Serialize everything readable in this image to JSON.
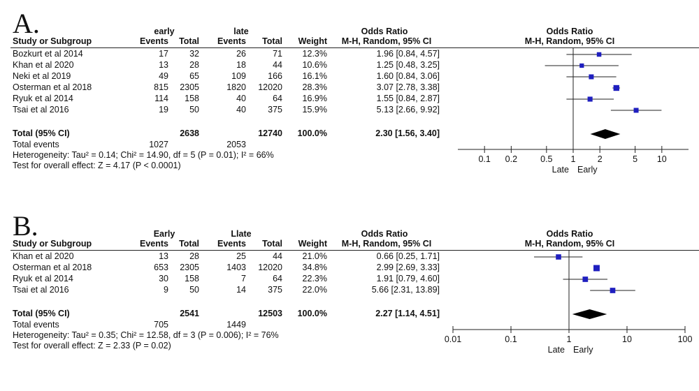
{
  "columns": {
    "study": "Study or Subgroup",
    "events": "Events",
    "total": "Total",
    "weight": "Weight",
    "or_title": "Odds Ratio",
    "or_method": "M-H, Random, 95% CI"
  },
  "colors": {
    "marker": "#1f1fbf",
    "diamond": "#000000",
    "line": "#222222"
  },
  "panels": [
    {
      "letter": "A.",
      "group1": "early",
      "group2": "late",
      "studies": [
        {
          "name": "Bozkurt et al 2014",
          "e1": "17",
          "t1": "32",
          "e2": "26",
          "t2": "71",
          "weight": "12.3%",
          "ci": "1.96 [0.84, 4.57]"
        },
        {
          "name": "Khan et al 2020",
          "e1": "13",
          "t1": "28",
          "e2": "18",
          "t2": "44",
          "weight": "10.6%",
          "ci": "1.25 [0.48, 3.25]"
        },
        {
          "name": "Neki et al 2019",
          "e1": "49",
          "t1": "65",
          "e2": "109",
          "t2": "166",
          "weight": "16.1%",
          "ci": "1.60 [0.84, 3.06]"
        },
        {
          "name": "Osterman et al 2018",
          "e1": "815",
          "t1": "2305",
          "e2": "1820",
          "t2": "12020",
          "weight": "28.3%",
          "ci": "3.07 [2.78, 3.38]"
        },
        {
          "name": "Ryuk et al 2014",
          "e1": "114",
          "t1": "158",
          "e2": "40",
          "t2": "64",
          "weight": "16.9%",
          "ci": "1.55 [0.84, 2.87]"
        },
        {
          "name": "Tsai et al 2016",
          "e1": "19",
          "t1": "50",
          "e2": "40",
          "t2": "375",
          "weight": "15.9%",
          "ci": "5.13 [2.66, 9.92]"
        }
      ],
      "total": {
        "label": "Total (95% CI)",
        "t1": "2638",
        "t2": "12740",
        "weight": "100.0%",
        "ci": "2.30 [1.56, 3.40]"
      },
      "events": {
        "label": "Total events",
        "e1": "1027",
        "e2": "2053"
      },
      "heterogeneity": "Heterogeneity: Tau² = 0.14; Chi² = 14.90, df = 5 (P = 0.01); I² = 66%",
      "overall": "Test for overall effect: Z = 4.17 (P < 0.0001)",
      "axis_labels": {
        "left": "Late",
        "right": "Early"
      },
      "chart_data": {
        "type": "scatter",
        "xscale": "log",
        "xlim": [
          0.05,
          20
        ],
        "ticks": [
          0.1,
          0.2,
          0.5,
          1,
          2,
          5,
          10
        ],
        "tick_labels": [
          "0.1",
          "0.2",
          "0.5",
          "1",
          "2",
          "5",
          "10"
        ],
        "points": [
          {
            "or": 1.96,
            "lo": 0.84,
            "hi": 4.57,
            "w": 12.3
          },
          {
            "or": 1.25,
            "lo": 0.48,
            "hi": 3.25,
            "w": 10.6
          },
          {
            "or": 1.6,
            "lo": 0.84,
            "hi": 3.06,
            "w": 16.1
          },
          {
            "or": 3.07,
            "lo": 2.78,
            "hi": 3.38,
            "w": 28.3
          },
          {
            "or": 1.55,
            "lo": 0.84,
            "hi": 2.87,
            "w": 16.9
          },
          {
            "or": 5.13,
            "lo": 2.66,
            "hi": 9.92,
            "w": 15.9
          }
        ],
        "pooled": {
          "or": 2.3,
          "lo": 1.56,
          "hi": 3.4
        }
      }
    },
    {
      "letter": "B.",
      "group1": "Early",
      "group2": "Llate",
      "studies": [
        {
          "name": "Khan et al 2020",
          "e1": "13",
          "t1": "28",
          "e2": "25",
          "t2": "44",
          "weight": "21.0%",
          "ci": "0.66 [0.25, 1.71]"
        },
        {
          "name": "Osterman et al 2018",
          "e1": "653",
          "t1": "2305",
          "e2": "1403",
          "t2": "12020",
          "weight": "34.8%",
          "ci": "2.99 [2.69, 3.33]"
        },
        {
          "name": "Ryuk et al 2014",
          "e1": "30",
          "t1": "158",
          "e2": "7",
          "t2": "64",
          "weight": "22.3%",
          "ci": "1.91 [0.79, 4.60]"
        },
        {
          "name": "Tsai et al 2016",
          "e1": "9",
          "t1": "50",
          "e2": "14",
          "t2": "375",
          "weight": "22.0%",
          "ci": "5.66 [2.31, 13.89]"
        }
      ],
      "total": {
        "label": "Total (95% CI)",
        "t1": "2541",
        "t2": "12503",
        "weight": "100.0%",
        "ci": "2.27 [1.14, 4.51]"
      },
      "events": {
        "label": "Total events",
        "e1": "705",
        "e2": "1449"
      },
      "heterogeneity": "Heterogeneity: Tau² = 0.35; Chi² = 12.58, df = 3 (P = 0.006); I² = 76%",
      "overall": "Test for overall effect: Z = 2.33 (P = 0.02)",
      "axis_labels": {
        "left": "Late",
        "right": "Early"
      },
      "chart_data": {
        "type": "scatter",
        "xscale": "log",
        "xlim": [
          0.01,
          100
        ],
        "ticks": [
          0.01,
          0.1,
          1,
          10,
          100
        ],
        "tick_labels": [
          "0.01",
          "0.1",
          "1",
          "10",
          "100"
        ],
        "points": [
          {
            "or": 0.66,
            "lo": 0.25,
            "hi": 1.71,
            "w": 21.0
          },
          {
            "or": 2.99,
            "lo": 2.69,
            "hi": 3.33,
            "w": 34.8
          },
          {
            "or": 1.91,
            "lo": 0.79,
            "hi": 4.6,
            "w": 22.3
          },
          {
            "or": 5.66,
            "lo": 2.31,
            "hi": 13.89,
            "w": 22.0
          }
        ],
        "pooled": {
          "or": 2.27,
          "lo": 1.14,
          "hi": 4.51
        }
      }
    }
  ]
}
